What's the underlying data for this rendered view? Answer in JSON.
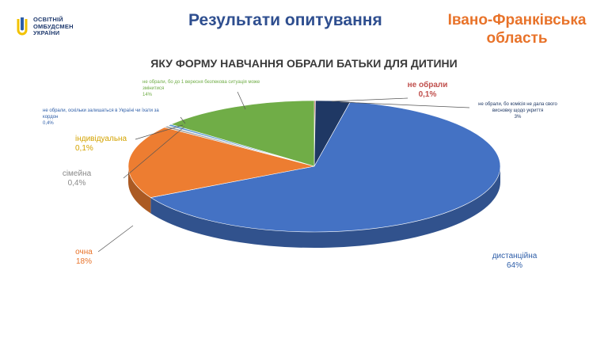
{
  "logo": {
    "line1": "ОСВІТНІЙ",
    "line2": "ОМБУДСМЕН",
    "line3": "УКРАЇНИ"
  },
  "header": {
    "title": "Результати опитування",
    "region_line1": "Івано-Франківська",
    "region_line2": "область"
  },
  "chart_data": {
    "type": "pie",
    "title": "ЯКУ ФОРМУ НАВЧАННЯ ОБРАЛИ БАТЬКИ ДЛЯ ДИТИНИ",
    "slices": [
      {
        "name": "не обрали",
        "value_label": "0,1%",
        "value": 0.1,
        "color": "#c0504d"
      },
      {
        "name": "не обрали, бо комісія не дала свого висновку щодо укриття",
        "value_label": "3%",
        "value": 3,
        "color": "#1f3864"
      },
      {
        "name": "дистанційна",
        "value_label": "64%",
        "value": 64,
        "color": "#4472c4"
      },
      {
        "name": "очна",
        "value_label": "18%",
        "value": 18,
        "color": "#ed7d31"
      },
      {
        "name": "сімейна",
        "value_label": "0,4%",
        "value": 0.4,
        "color": "#a5a5a5"
      },
      {
        "name": "індивідуальна",
        "value_label": "0,1%",
        "value": 0.1,
        "color": "#ffc000"
      },
      {
        "name": "не обрали, оскільки залишаться в Україні чи їхати за кордон",
        "value_label": "0,4%",
        "value": 0.4,
        "color": "#5b9bd5"
      },
      {
        "name": "не обрали, бо до 1 вересня безпекова ситуація може змінитися",
        "value_label": "14%",
        "value": 14,
        "color": "#70ad47"
      }
    ]
  }
}
